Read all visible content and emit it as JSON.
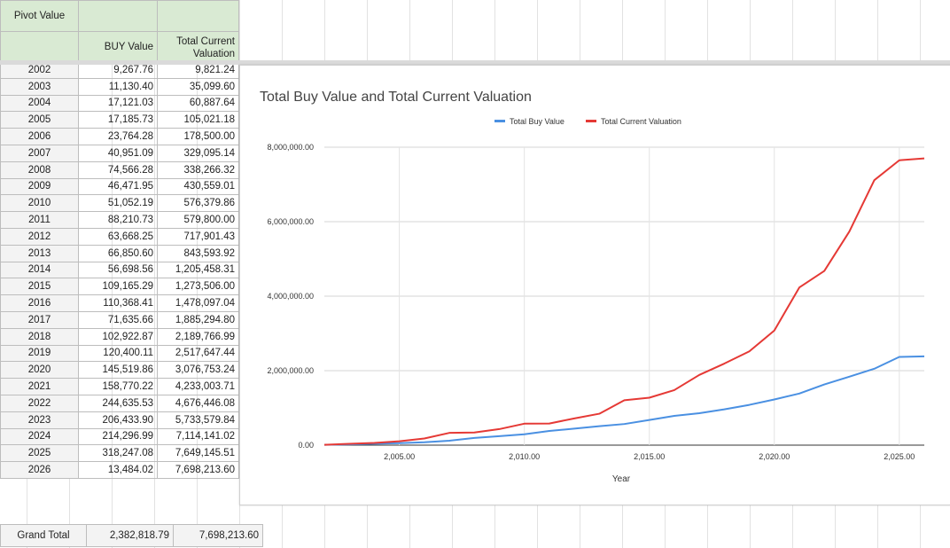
{
  "pivot": {
    "title": "Pivot Value",
    "col1_header": "BUY Value",
    "col2_header": "Total Current Valuation",
    "rows": [
      [
        "2002",
        "9,267.76",
        "9,821.24"
      ],
      [
        "2003",
        "11,130.40",
        "35,099.60"
      ],
      [
        "2004",
        "17,121.03",
        "60,887.64"
      ],
      [
        "2005",
        "17,185.73",
        "105,021.18"
      ],
      [
        "2006",
        "23,764.28",
        "178,500.00"
      ],
      [
        "2007",
        "40,951.09",
        "329,095.14"
      ],
      [
        "2008",
        "74,566.28",
        "338,266.32"
      ],
      [
        "2009",
        "46,471.95",
        "430,559.01"
      ],
      [
        "2010",
        "51,052.19",
        "576,379.86"
      ],
      [
        "2011",
        "88,210.73",
        "579,800.00"
      ],
      [
        "2012",
        "63,668.25",
        "717,901.43"
      ],
      [
        "2013",
        "66,850.60",
        "843,593.92"
      ],
      [
        "2014",
        "56,698.56",
        "1,205,458.31"
      ],
      [
        "2015",
        "109,165.29",
        "1,273,506.00"
      ],
      [
        "2016",
        "110,368.41",
        "1,478,097.04"
      ],
      [
        "2017",
        "71,635.66",
        "1,885,294.80"
      ],
      [
        "2018",
        "102,922.87",
        "2,189,766.99"
      ],
      [
        "2019",
        "120,400.11",
        "2,517,647.44"
      ],
      [
        "2020",
        "145,519.86",
        "3,076,753.24"
      ],
      [
        "2021",
        "158,770.22",
        "4,233,003.71"
      ],
      [
        "2022",
        "244,635.53",
        "4,676,446.08"
      ],
      [
        "2023",
        "206,433.90",
        "5,733,579.84"
      ],
      [
        "2024",
        "214,296.99",
        "7,114,141.02"
      ],
      [
        "2025",
        "318,247.08",
        "7,649,145.51"
      ],
      [
        "2026",
        "13,484.02",
        "7,698,213.60"
      ]
    ],
    "grand_total_label": "Grand Total",
    "grand_total_buy": "2,382,818.79",
    "grand_total_valuation": "7,698,213.60"
  },
  "chart_data": {
    "type": "line",
    "title": "Total Buy Value and Total Current Valuation",
    "xlabel": "Year",
    "ylabel": "",
    "legend_position": "top",
    "x": [
      2002,
      2003,
      2004,
      2005,
      2006,
      2007,
      2008,
      2009,
      2010,
      2011,
      2012,
      2013,
      2014,
      2015,
      2016,
      2017,
      2018,
      2019,
      2020,
      2021,
      2022,
      2023,
      2024,
      2025,
      2026
    ],
    "xlim": [
      2002,
      2026
    ],
    "ylim": [
      0,
      8000000
    ],
    "xticks": [
      "2,005.00",
      "2,010.00",
      "2,015.00",
      "2,020.00",
      "2,025.00"
    ],
    "yticks": [
      "0.00",
      "2,000,000.00",
      "4,000,000.00",
      "6,000,000.00",
      "8,000,000.00"
    ],
    "series": [
      {
        "name": "Total Buy Value",
        "color": "#4a90e2",
        "values": [
          9267.76,
          20398.16,
          37519.19,
          54704.92,
          78469.2,
          119420.29,
          193986.57,
          240458.52,
          291510.71,
          379721.44,
          443389.69,
          510240.29,
          566938.85,
          676104.14,
          786472.55,
          858108.21,
          961031.08,
          1081431.19,
          1226951.05,
          1385721.27,
          1630356.8,
          1836790.7,
          2051087.69,
          2369334.77,
          2382818.79
        ]
      },
      {
        "name": "Total Current Valuation",
        "color": "#e53935",
        "values": [
          9821.24,
          35099.6,
          60887.64,
          105021.18,
          178500,
          329095.14,
          338266.32,
          430559.01,
          576379.86,
          579800,
          717901.43,
          843593.92,
          1205458.31,
          1273506,
          1478097.04,
          1885294.8,
          2189766.99,
          2517647.44,
          3076753.24,
          4233003.71,
          4676446.08,
          5733579.84,
          7114141.02,
          7649145.51,
          7698213.6
        ]
      }
    ]
  }
}
